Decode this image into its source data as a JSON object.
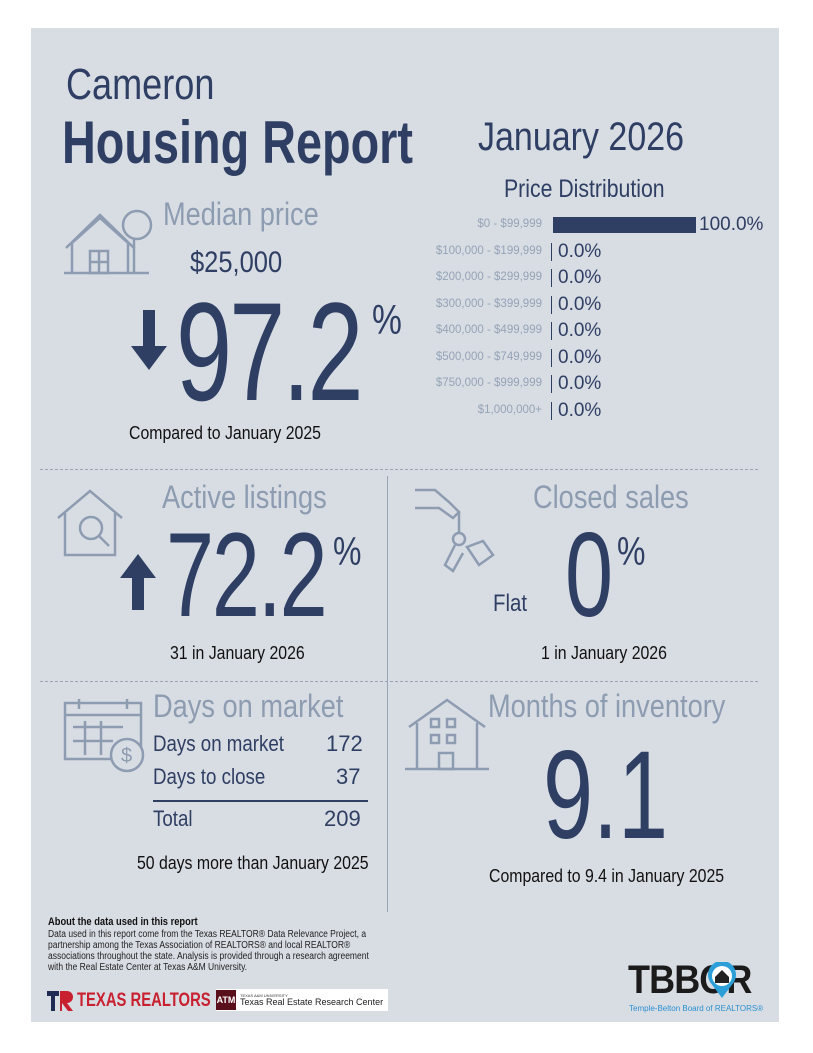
{
  "header": {
    "city": "Cameron",
    "title": "Housing Report",
    "period": "January 2026"
  },
  "median_price": {
    "label": "Median price",
    "value": "$25,000",
    "change": "97.2",
    "unit": "%",
    "direction": "down",
    "comparison": "Compared to January 2025",
    "icon": "house-tree-icon"
  },
  "price_distribution": {
    "title": "Price Distribution",
    "rows": [
      {
        "range": "$0 - $99,999",
        "percent": 100.0,
        "label": "100.0%"
      },
      {
        "range": "$100,000 - $199,999",
        "percent": 0,
        "label": "0.0%"
      },
      {
        "range": "$200,000 - $299,999",
        "percent": 0,
        "label": "0.0%"
      },
      {
        "range": "$300,000 - $399,999",
        "percent": 0,
        "label": "0.0%"
      },
      {
        "range": "$400,000 - $499,999",
        "percent": 0,
        "label": "0.0%"
      },
      {
        "range": "$500,000 - $749,999",
        "percent": 0,
        "label": "0.0%"
      },
      {
        "range": "$750,000 - $999,999",
        "percent": 0,
        "label": "0.0%"
      },
      {
        "range": "$1,000,000+",
        "percent": 0,
        "label": "0.0%"
      }
    ]
  },
  "active_listings": {
    "label": "Active listings",
    "change": "72.2",
    "unit": "%",
    "direction": "up",
    "detail": "31 in January 2026"
  },
  "closed_sales": {
    "label": "Closed sales",
    "change": "0",
    "unit": "%",
    "direction": "Flat",
    "detail": "1 in January 2026"
  },
  "days_on_market": {
    "label": "Days on market",
    "rows": [
      {
        "name": "Days on market",
        "value": "172"
      },
      {
        "name": "Days to close",
        "value": "37"
      }
    ],
    "total_label": "Total",
    "total": "209",
    "comparison": "50 days more than January 2025"
  },
  "months_inventory": {
    "label": "Months of inventory",
    "value": "9.1",
    "comparison": "Compared to 9.4 in January 2025"
  },
  "footer": {
    "about_title": "About the data used in this report",
    "about_text": "Data used in this report come from the Texas REALTOR® Data Relevance Project, a partnership among the Texas Association of REALTORS® and local REALTOR® associations throughout the state. Analysis is provided through a research agreement with the Real Estate Center at Texas A&M University.",
    "texas_realtors": "TEXAS REALTORS",
    "tamu_small": "TEXAS A&M UNIVERSITY",
    "tamu": "Texas Real Estate Research Center",
    "tbbor": "TBBOR",
    "tbbor_sub": "Temple-Belton Board of REALTORS®"
  },
  "colors": {
    "navy": "#2f3e63",
    "grey": "#8d9cb1",
    "panel": "#d8dde4",
    "red": "#c8202f"
  }
}
